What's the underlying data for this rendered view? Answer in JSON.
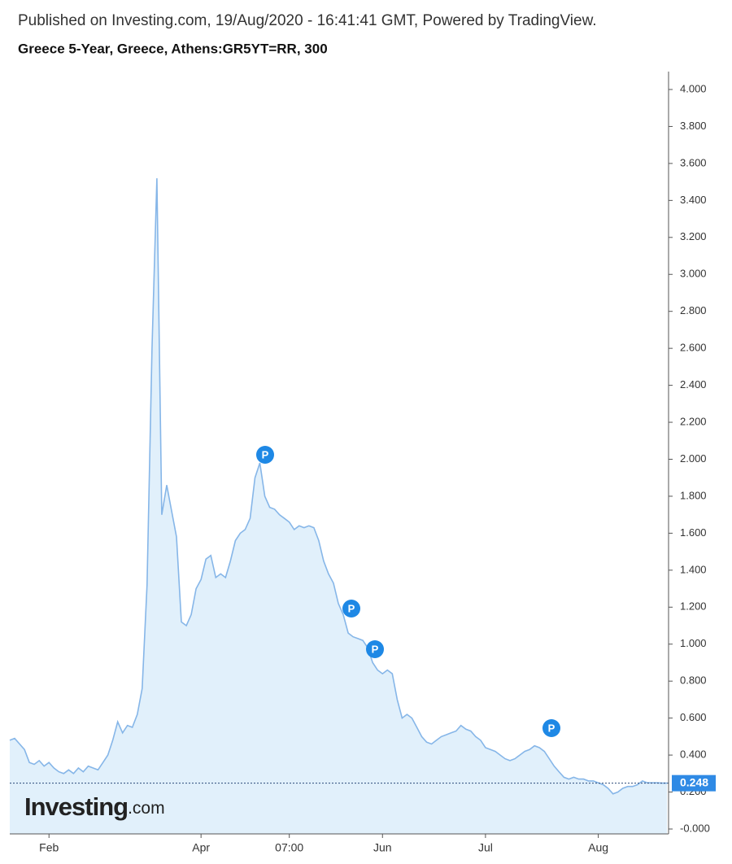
{
  "chart_data": {
    "type": "area",
    "source": "Published on Investing.com, 19/Aug/2020 - 16:41:41 GMT, Powered by TradingView.",
    "title": "Greece 5-Year, Greece, Athens:GR5YT=RR, 300",
    "logo": {
      "name": "Investing",
      "suffix": ".com"
    },
    "color": "#86b6e8",
    "fill": "#e1f0fb",
    "annotations": [
      "P",
      "P",
      "P",
      "P"
    ],
    "categories": [
      null,
      null,
      null,
      null,
      null,
      null,
      null,
      null,
      "Feb",
      null,
      null,
      null,
      null,
      null,
      null,
      null,
      null,
      null,
      null,
      null,
      null,
      null,
      null,
      null,
      null,
      null,
      null,
      null,
      null,
      null,
      null,
      null,
      null,
      null,
      null,
      null,
      null,
      null,
      null,
      "Apr",
      null,
      null,
      null,
      null,
      null,
      null,
      null,
      null,
      null,
      null,
      null,
      null,
      null,
      null,
      null,
      null,
      null,
      "07:00",
      null,
      null,
      null,
      null,
      null,
      null,
      null,
      null,
      null,
      null,
      null,
      null,
      null,
      null,
      null,
      null,
      null,
      null,
      "Jun",
      null,
      null,
      null,
      null,
      null,
      null,
      null,
      null,
      null,
      null,
      null,
      null,
      null,
      null,
      null,
      null,
      null,
      null,
      null,
      null,
      "Jul",
      null,
      null,
      null,
      null,
      null,
      null,
      null,
      null,
      null,
      null,
      null,
      null,
      null,
      null,
      null,
      null,
      null,
      null,
      null,
      null,
      null,
      null,
      "Aug",
      null,
      null,
      null,
      null,
      null,
      null,
      null,
      null,
      null,
      null,
      null,
      null,
      null,
      null
    ],
    "values": [
      0.48,
      0.49,
      0.46,
      0.43,
      0.36,
      0.35,
      0.37,
      0.34,
      0.36,
      0.33,
      0.31,
      0.3,
      0.32,
      0.3,
      0.33,
      0.31,
      0.34,
      0.33,
      0.32,
      0.36,
      0.4,
      0.48,
      0.58,
      0.52,
      0.56,
      0.55,
      0.62,
      0.76,
      1.32,
      2.6,
      3.52,
      1.7,
      1.86,
      1.72,
      1.58,
      1.12,
      1.1,
      1.16,
      1.3,
      1.35,
      1.46,
      1.48,
      1.36,
      1.38,
      1.36,
      1.45,
      1.56,
      1.6,
      1.62,
      1.68,
      1.9,
      1.98,
      1.8,
      1.74,
      1.73,
      1.7,
      1.68,
      1.66,
      1.62,
      1.64,
      1.63,
      1.64,
      1.63,
      1.56,
      1.45,
      1.38,
      1.33,
      1.22,
      1.16,
      1.06,
      1.04,
      1.03,
      1.02,
      0.98,
      0.9,
      0.86,
      0.84,
      0.86,
      0.84,
      0.7,
      0.6,
      0.62,
      0.6,
      0.55,
      0.5,
      0.47,
      0.46,
      0.48,
      0.5,
      0.51,
      0.52,
      0.53,
      0.56,
      0.54,
      0.53,
      0.5,
      0.48,
      0.44,
      0.43,
      0.42,
      0.4,
      0.38,
      0.37,
      0.38,
      0.4,
      0.42,
      0.43,
      0.45,
      0.44,
      0.42,
      0.38,
      0.34,
      0.31,
      0.28,
      0.27,
      0.28,
      0.27,
      0.27,
      0.26,
      0.26,
      0.25,
      0.24,
      0.22,
      0.19,
      0.2,
      0.22,
      0.23,
      0.23,
      0.24,
      0.26,
      0.25,
      0.25,
      0.25,
      0.248,
      0.248
    ],
    "ylim": [
      0,
      4
    ],
    "yticks": [
      {
        "value": 0,
        "label": "-0.000"
      },
      {
        "value": 0.2,
        "label": "0.200"
      },
      {
        "value": 0.4,
        "label": "0.400"
      },
      {
        "value": 0.6,
        "label": "0.600"
      },
      {
        "value": 0.8,
        "label": "0.800"
      },
      {
        "value": 1,
        "label": "1.000"
      },
      {
        "value": 1.2,
        "label": "1.200"
      },
      {
        "value": 1.4,
        "label": "1.400"
      },
      {
        "value": 1.6,
        "label": "1.600"
      },
      {
        "value": 1.8,
        "label": "1.800"
      },
      {
        "value": 2,
        "label": "2.000"
      },
      {
        "value": 2.2,
        "label": "2.200"
      },
      {
        "value": 2.4,
        "label": "2.400"
      },
      {
        "value": 2.6,
        "label": "2.600"
      },
      {
        "value": 2.8,
        "label": "2.800"
      },
      {
        "value": 3,
        "label": "3.000"
      },
      {
        "value": 3.2,
        "label": "3.200"
      },
      {
        "value": 3.4,
        "label": "3.400"
      },
      {
        "value": 3.6,
        "label": "3.600"
      },
      {
        "value": 3.8,
        "label": "3.800"
      },
      {
        "value": 4,
        "label": "4.000"
      }
    ]
  }
}
